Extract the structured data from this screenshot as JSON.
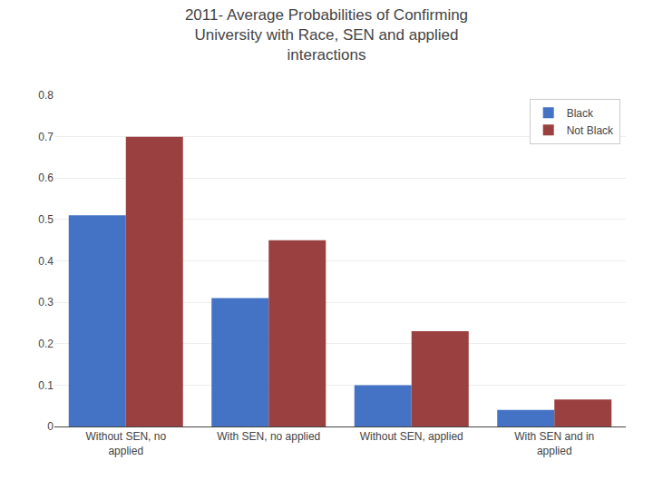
{
  "chart_data": {
    "type": "bar",
    "title": "2011- Average Probabilities of Confirming\nUniversity with Race, SEN and applied\ninteractions",
    "categories": [
      "Without SEN, no\napplied",
      "With SEN, no applied",
      "Without SEN, applied",
      "With SEN and in\napplied"
    ],
    "series": [
      {
        "name": "Black",
        "color": "#4472C4",
        "values": [
          0.51,
          0.31,
          0.1,
          0.04
        ]
      },
      {
        "name": "Not Black",
        "color": "#9B4040",
        "values": [
          0.7,
          0.45,
          0.23,
          0.065
        ]
      }
    ],
    "ylim": [
      0,
      0.8
    ],
    "yticks": [
      0,
      0.1,
      0.2,
      0.3,
      0.4,
      0.5,
      0.6,
      0.7,
      0.8
    ],
    "grid": true,
    "legend": "upper right"
  }
}
